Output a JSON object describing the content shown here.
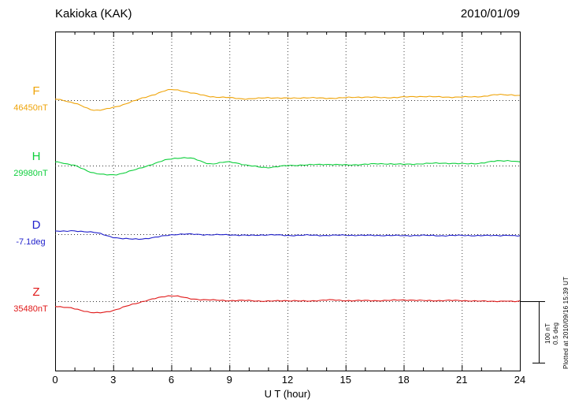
{
  "header": {
    "title": "Kakioka (KAK)",
    "date": "2010/01/09"
  },
  "plot": {
    "xlabel": "U T (hour)",
    "x_ticks": [
      0,
      3,
      6,
      9,
      12,
      15,
      18,
      21,
      24
    ],
    "grid_hours": [
      3,
      6,
      9,
      12,
      15,
      18,
      21
    ]
  },
  "scale_bar": {
    "nT_label": "100 nT",
    "deg_label": "0.5 deg"
  },
  "plotted_at": "Plotted at 2010/09/16 15:39 UT",
  "chart_data": {
    "type": "line",
    "title": "Kakioka (KAK)",
    "subtitle": "2010/01/09",
    "xlabel": "U T (hour)",
    "x_range": [
      0,
      24
    ],
    "x_ticks": [
      0,
      3,
      6,
      9,
      12,
      15,
      18,
      21,
      24
    ],
    "grid": "vertical-dotted",
    "scale": {
      "nT_per_div": 100,
      "deg_per_div": 0.5
    },
    "x_hours": [
      0,
      1,
      2,
      3,
      4,
      5,
      6,
      7,
      8,
      9,
      10,
      11,
      12,
      13,
      14,
      15,
      16,
      17,
      18,
      19,
      20,
      21,
      22,
      23,
      24
    ],
    "series": [
      {
        "name": "F",
        "base_label": "46450nT",
        "base_value": 46450,
        "unit": "nT",
        "color": "#efa409",
        "offsets": [
          2,
          -5,
          -16,
          -12,
          -2,
          8,
          17,
          12,
          6,
          4,
          2,
          4,
          3,
          4,
          3,
          4,
          5,
          4,
          5,
          6,
          5,
          5,
          6,
          9,
          7
        ]
      },
      {
        "name": "H",
        "base_label": "29980nT",
        "base_value": 29980,
        "unit": "nT",
        "color": "#0ecf3c",
        "offsets": [
          6,
          0,
          -12,
          -15,
          -8,
          2,
          11,
          12,
          3,
          6,
          0,
          -3,
          0,
          1,
          2,
          1,
          2,
          3,
          2,
          3,
          4,
          3,
          4,
          8,
          6
        ]
      },
      {
        "name": "D",
        "base_label": "-7.1deg",
        "base_value": -7.1,
        "unit": "deg",
        "color": "#2222cc",
        "offsets": [
          0.025,
          0.025,
          0.015,
          -0.025,
          -0.04,
          -0.03,
          -0.005,
          0,
          -0.005,
          -0.005,
          -0.01,
          -0.005,
          -0.01,
          -0.008,
          -0.01,
          -0.008,
          -0.01,
          -0.01,
          -0.012,
          -0.01,
          -0.012,
          -0.01,
          -0.012,
          -0.01,
          -0.012
        ]
      },
      {
        "name": "Z",
        "base_label": "35480nT",
        "base_value": 35480,
        "unit": "nT",
        "color": "#e01818",
        "offsets": [
          -8,
          -12,
          -19,
          -15,
          -5,
          3,
          9,
          4,
          2,
          1,
          1,
          0,
          1,
          0,
          2,
          1,
          1,
          1,
          2,
          1,
          1,
          1,
          0,
          0,
          0
        ]
      }
    ]
  }
}
